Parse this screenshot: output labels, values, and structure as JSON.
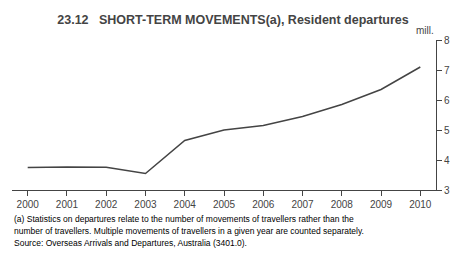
{
  "chart_data": {
    "type": "line",
    "title": "23.12   SHORT-TERM MOVEMENTS(a), Resident departures",
    "ylabel": "mill.",
    "x": [
      2000,
      2001,
      2002,
      2003,
      2004,
      2005,
      2006,
      2007,
      2008,
      2009,
      2010
    ],
    "values": [
      3.75,
      3.77,
      3.76,
      3.55,
      4.65,
      5.0,
      5.15,
      5.45,
      5.85,
      6.35,
      7.1
    ],
    "color": "#444444",
    "xlim": [
      1999.6,
      2010.4
    ],
    "xticks": [
      2000,
      2001,
      2002,
      2003,
      2004,
      2005,
      2006,
      2007,
      2008,
      2009,
      2010
    ],
    "ylim": [
      3,
      8
    ],
    "yticks": [
      3,
      4,
      5,
      6,
      7,
      8
    ],
    "grid": false,
    "annotations": [
      "(a) Statistics on departures relate to the number of movements of travellers rather than the",
      "number of travellers. Multiple movements of travellers in a given year are counted separately.",
      "Source: Overseas Arrivals and Departures, Australia (3401.0)."
    ]
  }
}
